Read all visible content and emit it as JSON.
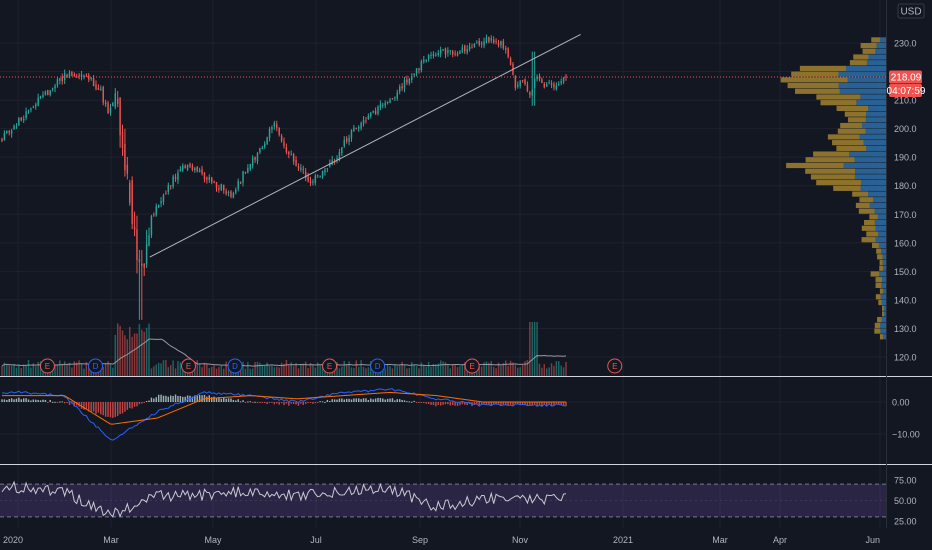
{
  "currency": "USD",
  "price_tag": "218.09",
  "countdown_tag": "04:07:59",
  "colors": {
    "background": "#131722",
    "grid": "#1e222d",
    "up": "#26a69a",
    "down": "#ef5350",
    "trendline": "#b2b5be",
    "macd_line": "#2962ff",
    "signal_line": "#ff6d00",
    "rsi_line": "#c8cad0",
    "rsi_band": "#7e57c2",
    "vp_up": "#2e6fa8",
    "vp_down": "#a3822f",
    "volume_ma": "#9598a1",
    "price_line": "#ef5350"
  },
  "chart_data": [
    {
      "type": "candlestick",
      "pane": "price",
      "x_labels": [
        "2020",
        "Mar",
        "May",
        "Jul",
        "Sep",
        "Nov",
        "2021",
        "Mar",
        "Apr",
        "Jun"
      ],
      "x_dates": [
        "2020-01",
        "2020-03",
        "2020-05",
        "2020-07",
        "2020-09",
        "2020-11",
        "2021-01",
        "2021-03",
        "2021-04",
        "2021-06"
      ],
      "y_ticks": [
        120,
        130,
        140,
        150,
        160,
        170,
        180,
        190,
        200,
        210,
        220,
        230
      ],
      "last_price": 218.09,
      "series": [
        {
          "name": "",
          "monthly_ohlc": [
            {
              "date": "2020-01",
              "open": 196,
              "high": 219,
              "low": 195,
              "close": 214
            },
            {
              "date": "2020-02",
              "open": 214,
              "high": 218,
              "low": 205,
              "close": 207
            },
            {
              "date": "2020-03",
              "open": 207,
              "high": 210,
              "low": 133,
              "close": 155
            },
            {
              "date": "2020-04",
              "open": 155,
              "high": 185,
              "low": 152,
              "close": 184
            },
            {
              "date": "2020-05",
              "open": 184,
              "high": 190,
              "low": 168,
              "close": 184
            },
            {
              "date": "2020-06",
              "open": 184,
              "high": 203,
              "low": 182,
              "close": 188
            },
            {
              "date": "2020-07",
              "open": 188,
              "high": 192,
              "low": 179,
              "close": 191
            },
            {
              "date": "2020-08",
              "open": 191,
              "high": 214,
              "low": 190,
              "close": 212
            },
            {
              "date": "2020-09",
              "open": 212,
              "high": 232,
              "low": 211,
              "close": 228
            },
            {
              "date": "2020-10",
              "open": 228,
              "high": 232,
              "low": 213,
              "close": 214
            },
            {
              "date": "2020-11",
              "open": 214,
              "high": 227,
              "low": 207,
              "close": 218.09
            }
          ]
        }
      ],
      "trendline": {
        "start": {
          "date": "2020-03-26",
          "price": 155
        },
        "end": {
          "date": "2020-12-29",
          "price": 233
        }
      },
      "events": [
        {
          "label": "E",
          "date": "2020-01",
          "kind": "earnings"
        },
        {
          "label": "D",
          "date": "2020-02",
          "kind": "dividend"
        },
        {
          "label": "E",
          "date": "2020-04",
          "kind": "earnings"
        },
        {
          "label": "D",
          "date": "2020-05",
          "kind": "dividend"
        },
        {
          "label": "E",
          "date": "2020-07",
          "kind": "earnings"
        },
        {
          "label": "D",
          "date": "2020-08",
          "kind": "dividend"
        },
        {
          "label": "E",
          "date": "2020-10",
          "kind": "earnings"
        },
        {
          "label": "E",
          "date": "2021-01",
          "kind": "earnings-upcoming"
        }
      ]
    },
    {
      "type": "bar",
      "pane": "volume",
      "note_values_relative": true,
      "monthly_relative_volume": [
        0.25,
        0.3,
        0.85,
        0.55,
        0.35,
        0.3,
        0.3,
        0.28,
        0.3,
        0.35,
        0.55
      ]
    },
    {
      "type": "line",
      "pane": "macd",
      "y_ticks": [
        0.0,
        -10.0
      ],
      "y_tick_labels": [
        "0.00",
        "−10.00"
      ],
      "macd_monthly": [
        3,
        2,
        -12,
        -3,
        3,
        2,
        0,
        3,
        4,
        1,
        -1
      ],
      "signal_monthly": [
        2,
        2,
        -7,
        -5,
        1,
        2,
        1,
        2,
        3,
        2,
        0
      ]
    },
    {
      "type": "line",
      "pane": "rsi",
      "y_ticks": [
        25,
        50,
        75
      ],
      "y_tick_labels": [
        "25.00",
        "50.00",
        "75.00"
      ],
      "bands": [
        30,
        70
      ],
      "rsi_monthly": [
        66,
        60,
        32,
        55,
        57,
        62,
        55,
        62,
        65,
        42,
        52
      ]
    },
    {
      "type": "bar",
      "pane": "volume-profile",
      "orientation": "horizontal",
      "bin_step": 2,
      "price_range": [
        126,
        232
      ]
    }
  ]
}
